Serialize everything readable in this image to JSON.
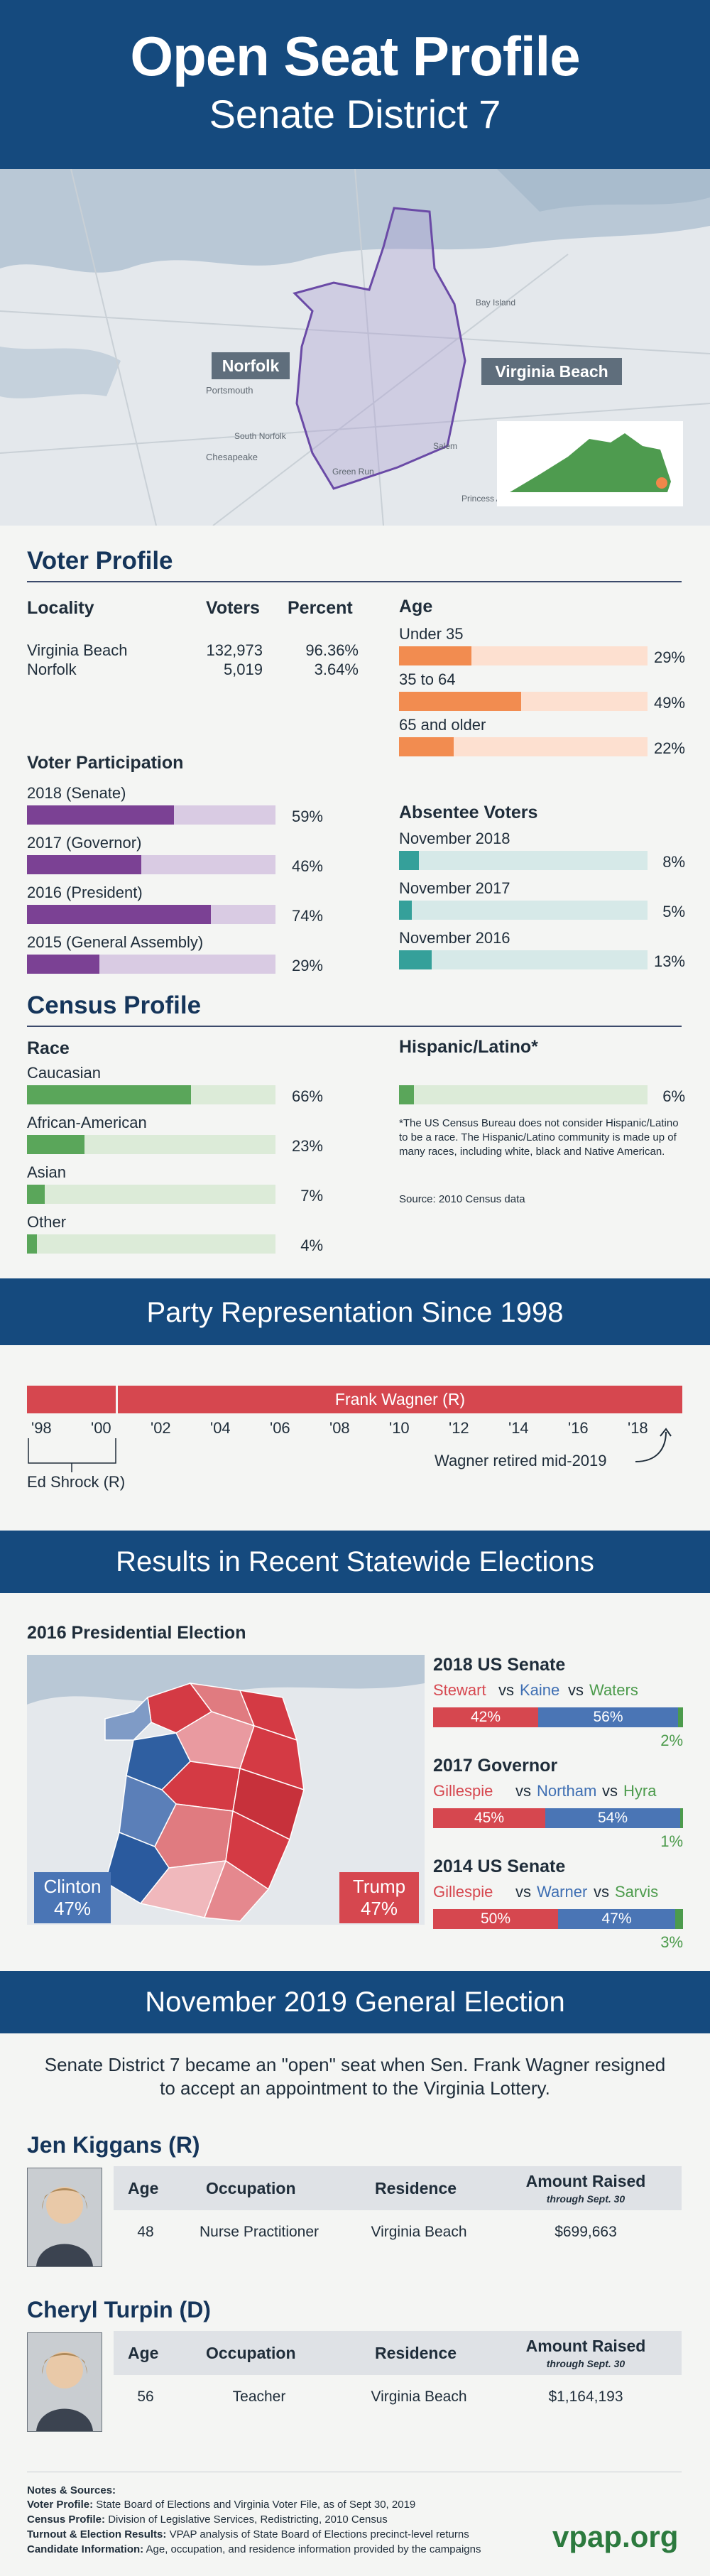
{
  "header": {
    "title": "Open Seat Profile",
    "subtitle": "Senate District 7"
  },
  "map": {
    "label_norfolk": "Norfolk",
    "label_vb": "Virginia Beach",
    "places": [
      "Portsmouth",
      "Chesapeake",
      "Bay Island",
      "Salem",
      "Princess Anne",
      "Green Run",
      "South Norfolk"
    ]
  },
  "voter_profile": {
    "title": "Voter Profile",
    "locality": {
      "headers": [
        "Locality",
        "Voters",
        "Percent"
      ],
      "rows": [
        {
          "name": "Virginia Beach",
          "voters": "132,973",
          "percent": "96.36%",
          "pct": 96.36
        },
        {
          "name": "Norfolk",
          "voters": "5,019",
          "percent": "3.64%",
          "pct": 3.64
        }
      ]
    },
    "age": {
      "title": "Age",
      "items": [
        {
          "label": "Under 35",
          "value": "29%",
          "pct": 29
        },
        {
          "label": "35 to 64",
          "value": "49%",
          "pct": 49
        },
        {
          "label": "65 and older",
          "value": "22%",
          "pct": 22
        }
      ]
    },
    "participation": {
      "title": "Voter Participation",
      "items": [
        {
          "label": "2018 (Senate)",
          "value": "59%",
          "pct": 59
        },
        {
          "label": "2017 (Governor)",
          "value": "46%",
          "pct": 46
        },
        {
          "label": "2016 (President)",
          "value": "74%",
          "pct": 74
        },
        {
          "label": "2015 (General Assembly)",
          "value": "29%",
          "pct": 29
        }
      ]
    },
    "absentee": {
      "title": "Absentee Voters",
      "items": [
        {
          "label": "November 2018",
          "value": "8%",
          "pct": 8
        },
        {
          "label": "November 2017",
          "value": "5%",
          "pct": 5
        },
        {
          "label": "November 2016",
          "value": "13%",
          "pct": 13
        }
      ]
    }
  },
  "census": {
    "title": "Census Profile",
    "race": {
      "title": "Race",
      "items": [
        {
          "label": "Caucasian",
          "value": "66%",
          "pct": 66
        },
        {
          "label": "African-American",
          "value": "23%",
          "pct": 23
        },
        {
          "label": "Asian",
          "value": "7%",
          "pct": 7
        },
        {
          "label": "Other",
          "value": "4%",
          "pct": 4
        }
      ]
    },
    "hispanic": {
      "title": "Hispanic/Latino*",
      "value": "6%",
      "pct": 6,
      "note": "*The US Census Bureau does not consider Hispanic/Latino to be a race. The Hispanic/Latino community is made up of many races, including white, black and Native American.",
      "source": "Source: 2010 Census data"
    }
  },
  "party": {
    "title": "Party Representation Since 1998",
    "bar_label": "Frank Wagner (R)",
    "years": [
      "'98",
      "'00",
      "'02",
      "'04",
      "'06",
      "'08",
      "'10",
      "'12",
      "'14",
      "'16",
      "'18"
    ],
    "shrock": "Ed Shrock (R)",
    "retired": "Wagner retired mid-2019",
    "colors": {
      "rep": "#d6474f"
    }
  },
  "results": {
    "title": "Results in Recent Statewide Elections",
    "pres_title": "2016 Presidential Election",
    "clinton": {
      "name": "Clinton",
      "pct": "47%"
    },
    "trump": {
      "name": "Trump",
      "pct": "47%"
    },
    "races": [
      {
        "title": "2018 US Senate",
        "c1": "Stewart",
        "c2": "Kaine",
        "c3": "Waters",
        "vs": "vs",
        "r": "42%",
        "d": "56%",
        "o": "2%",
        "rp": 42,
        "dp": 56,
        "op": 2
      },
      {
        "title": "2017 Governor",
        "c1": "Gillespie",
        "c2": "Northam",
        "c3": "Hyra",
        "vs": "vs",
        "r": "45%",
        "d": "54%",
        "o": "1%",
        "rp": 45,
        "dp": 54,
        "op": 1
      },
      {
        "title": "2014 US Senate",
        "c1": "Gillespie",
        "c2": "Warner",
        "c3": "Sarvis",
        "vs": "vs",
        "r": "50%",
        "d": "47%",
        "o": "3%",
        "rp": 50,
        "dp": 47,
        "op": 3
      }
    ]
  },
  "general": {
    "title": "November 2019 General Election",
    "intro": "Senate District 7 became an \"open\" seat when Sen. Frank Wagner resigned to accept an appointment to the Virginia Lottery.",
    "col_age": "Age",
    "col_occ": "Occupation",
    "col_res": "Residence",
    "col_amt": "Amount Raised",
    "col_amt_sub": "through Sept. 30",
    "candidates": [
      {
        "name": "Jen Kiggans (R)",
        "age": "48",
        "occupation": "Nurse Practitioner",
        "residence": "Virginia Beach",
        "amount": "$699,663"
      },
      {
        "name": "Cheryl Turpin (D)",
        "age": "56",
        "occupation": "Teacher",
        "residence": "Virginia Beach",
        "amount": "$1,164,193"
      }
    ]
  },
  "notes": {
    "title": "Notes & Sources:",
    "lines": [
      {
        "label": "Voter Profile:",
        "text": "State Board of Elections and Virginia Voter File, as of Sept 30, 2019"
      },
      {
        "label": "Census Profile:",
        "text": "Division of Legislative Services, Redistricting, 2010 Census"
      },
      {
        "label": "Turnout & Election Results:",
        "text": "VPAP analysis of State Board of Elections precinct-level returns"
      },
      {
        "label": "Candidate Information:",
        "text": "Age, occupation, and residence information provided by the campaigns"
      }
    ],
    "logo": "vpap.org"
  }
}
